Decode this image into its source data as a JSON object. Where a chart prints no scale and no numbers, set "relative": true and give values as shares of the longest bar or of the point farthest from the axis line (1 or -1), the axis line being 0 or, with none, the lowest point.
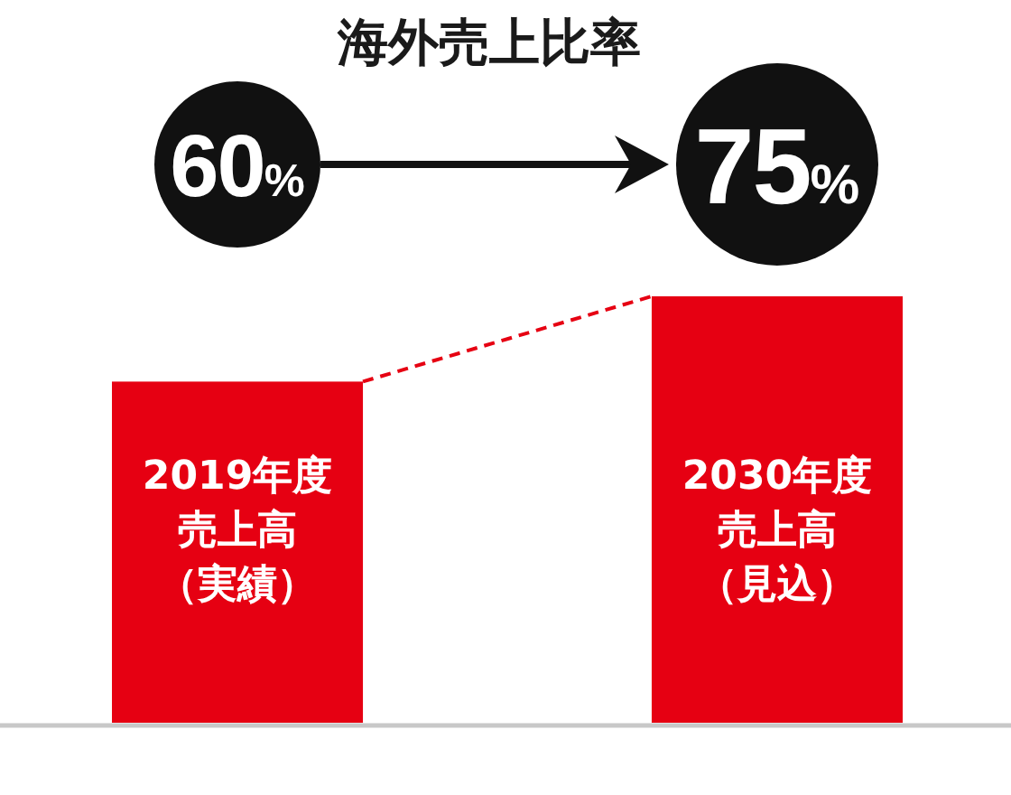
{
  "chart_data": {
    "type": "bar",
    "title": "海外売上比率",
    "categories": [
      "2019年度売上高（実績）",
      "2030年度売上高（見込）"
    ],
    "values": [
      0.8,
      1
    ],
    "relative": true,
    "color": "#e60012",
    "annotations": [
      "60%",
      "75%"
    ]
  }
}
